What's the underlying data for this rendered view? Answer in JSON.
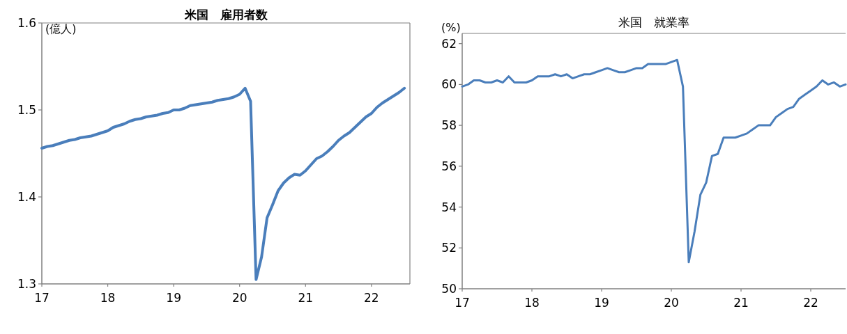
{
  "chart_data": [
    {
      "type": "line",
      "title": "米国　雇用者数",
      "ylabel": "(億人)",
      "color": "#4a7ebb",
      "x": [
        "2017-01",
        "2017-02",
        "2017-03",
        "2017-04",
        "2017-05",
        "2017-06",
        "2017-07",
        "2017-08",
        "2017-09",
        "2017-10",
        "2017-11",
        "2017-12",
        "2018-01",
        "2018-02",
        "2018-03",
        "2018-04",
        "2018-05",
        "2018-06",
        "2018-07",
        "2018-08",
        "2018-09",
        "2018-10",
        "2018-11",
        "2018-12",
        "2019-01",
        "2019-02",
        "2019-03",
        "2019-04",
        "2019-05",
        "2019-06",
        "2019-07",
        "2019-08",
        "2019-09",
        "2019-10",
        "2019-11",
        "2019-12",
        "2020-01",
        "2020-02",
        "2020-03",
        "2020-04",
        "2020-05",
        "2020-06",
        "2020-07",
        "2020-08",
        "2020-09",
        "2020-10",
        "2020-11",
        "2020-12",
        "2021-01",
        "2021-02",
        "2021-03",
        "2021-04",
        "2021-05",
        "2021-06",
        "2021-07",
        "2021-08",
        "2021-09",
        "2021-10",
        "2021-11",
        "2021-12",
        "2022-01",
        "2022-02",
        "2022-03",
        "2022-04",
        "2022-05",
        "2022-06",
        "2022-07"
      ],
      "values": [
        1.456,
        1.458,
        1.459,
        1.461,
        1.463,
        1.465,
        1.466,
        1.468,
        1.469,
        1.47,
        1.472,
        1.474,
        1.476,
        1.48,
        1.482,
        1.484,
        1.487,
        1.489,
        1.49,
        1.492,
        1.493,
        1.494,
        1.496,
        1.497,
        1.5,
        1.5,
        1.502,
        1.505,
        1.506,
        1.507,
        1.508,
        1.509,
        1.511,
        1.512,
        1.513,
        1.515,
        1.518,
        1.525,
        1.51,
        1.305,
        1.331,
        1.376,
        1.391,
        1.407,
        1.416,
        1.422,
        1.426,
        1.425,
        1.43,
        1.437,
        1.444,
        1.447,
        1.452,
        1.458,
        1.465,
        1.47,
        1.474,
        1.48,
        1.486,
        1.492,
        1.496,
        1.503,
        1.508,
        1.512,
        1.516,
        1.52,
        1.525
      ],
      "xlim": [
        "2017-01",
        "2022-08"
      ],
      "xticks": [
        {
          "value": "2017-01",
          "label": "17"
        },
        {
          "value": "2018-01",
          "label": "18"
        },
        {
          "value": "2019-01",
          "label": "19"
        },
        {
          "value": "2020-01",
          "label": "20"
        },
        {
          "value": "2021-01",
          "label": "21"
        },
        {
          "value": "2022-01",
          "label": "22"
        }
      ],
      "ylim": [
        1.3,
        1.6
      ],
      "yticks": [
        1.3,
        1.4,
        1.5,
        1.6
      ]
    },
    {
      "type": "line",
      "title": "米国　就業率",
      "ylabel": "(%)",
      "color": "#4a7ebb",
      "x": [
        "2017-01",
        "2017-02",
        "2017-03",
        "2017-04",
        "2017-05",
        "2017-06",
        "2017-07",
        "2017-08",
        "2017-09",
        "2017-10",
        "2017-11",
        "2017-12",
        "2018-01",
        "2018-02",
        "2018-03",
        "2018-04",
        "2018-05",
        "2018-06",
        "2018-07",
        "2018-08",
        "2018-09",
        "2018-10",
        "2018-11",
        "2018-12",
        "2019-01",
        "2019-02",
        "2019-03",
        "2019-04",
        "2019-05",
        "2019-06",
        "2019-07",
        "2019-08",
        "2019-09",
        "2019-10",
        "2019-11",
        "2019-12",
        "2020-01",
        "2020-02",
        "2020-03",
        "2020-04",
        "2020-05",
        "2020-06",
        "2020-07",
        "2020-08",
        "2020-09",
        "2020-10",
        "2020-11",
        "2020-12",
        "2021-01",
        "2021-02",
        "2021-03",
        "2021-04",
        "2021-05",
        "2021-06",
        "2021-07",
        "2021-08",
        "2021-09",
        "2021-10",
        "2021-11",
        "2021-12",
        "2022-01",
        "2022-02",
        "2022-03",
        "2022-04",
        "2022-05",
        "2022-06",
        "2022-07"
      ],
      "values": [
        59.9,
        60.0,
        60.2,
        60.2,
        60.1,
        60.1,
        60.2,
        60.1,
        60.4,
        60.1,
        60.1,
        60.1,
        60.2,
        60.4,
        60.4,
        60.4,
        60.5,
        60.4,
        60.5,
        60.3,
        60.4,
        60.5,
        60.5,
        60.6,
        60.7,
        60.8,
        60.7,
        60.6,
        60.6,
        60.7,
        60.8,
        60.8,
        61.0,
        61.0,
        61.0,
        61.0,
        61.1,
        61.2,
        59.9,
        51.3,
        52.8,
        54.6,
        55.2,
        56.5,
        56.6,
        57.4,
        57.4,
        57.4,
        57.5,
        57.6,
        57.8,
        58.0,
        58.0,
        58.0,
        58.4,
        58.6,
        58.8,
        58.9,
        59.3,
        59.5,
        59.7,
        59.9,
        60.2,
        60.0,
        60.1,
        59.9,
        60.0
      ],
      "xlim": [
        "2017-01",
        "2022-07"
      ],
      "xticks": [
        {
          "value": "2017-01",
          "label": "17"
        },
        {
          "value": "2018-01",
          "label": "18"
        },
        {
          "value": "2019-01",
          "label": "19"
        },
        {
          "value": "2020-01",
          "label": "20"
        },
        {
          "value": "2021-01",
          "label": "21"
        },
        {
          "value": "2022-01",
          "label": "22"
        }
      ],
      "ylim": [
        50,
        62.5
      ],
      "yticks": [
        50,
        52,
        54,
        56,
        58,
        60,
        62
      ]
    }
  ]
}
